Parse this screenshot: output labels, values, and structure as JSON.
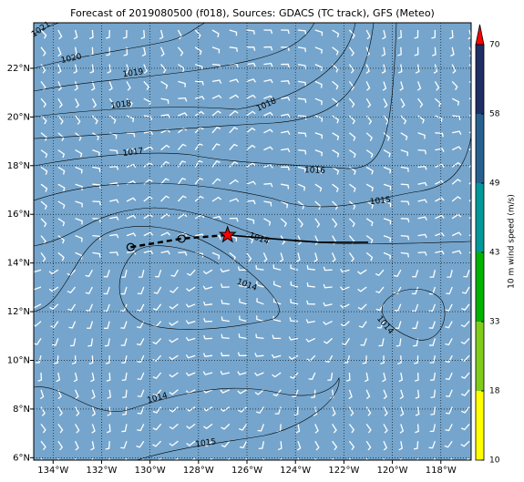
{
  "chart_data": {
    "type": "map",
    "title": "Forecast of 2019080500 (f018), Sources: GDACS (TC track), GFS (Meteo)",
    "xlim": [
      -134.8,
      -116.75
    ],
    "ylim": [
      5.9,
      23.87
    ],
    "xticks": [
      {
        "value": -134,
        "label": "134°W"
      },
      {
        "value": -132,
        "label": "132°W"
      },
      {
        "value": -130,
        "label": "130°W"
      },
      {
        "value": -128,
        "label": "128°W"
      },
      {
        "value": -126,
        "label": "126°W"
      },
      {
        "value": -124,
        "label": "124°W"
      },
      {
        "value": -122,
        "label": "122°W"
      },
      {
        "value": -120,
        "label": "120°W"
      },
      {
        "value": -118,
        "label": "118°W"
      }
    ],
    "yticks": [
      {
        "value": 6,
        "label": "6°N"
      },
      {
        "value": 8,
        "label": "8°N"
      },
      {
        "value": 10,
        "label": "10°N"
      },
      {
        "value": 12,
        "label": "12°N"
      },
      {
        "value": 14,
        "label": "14°N"
      },
      {
        "value": 16,
        "label": "16°N"
      },
      {
        "value": 18,
        "label": "18°N"
      },
      {
        "value": 20,
        "label": "20°N"
      },
      {
        "value": 22,
        "label": "22°N"
      }
    ],
    "grid": true,
    "background": "#75a5cc",
    "past_track": {
      "lon": [
        -130.8,
        -128.7,
        -126.8
      ],
      "lat": [
        14.65,
        15.0,
        15.15
      ]
    },
    "forecast_track": {
      "lon": [
        -126.8,
        -125,
        -123,
        -121
      ],
      "lat": [
        15.15,
        15.0,
        14.85,
        14.85
      ]
    },
    "contour_labels": [
      {
        "text": "1021",
        "lon": -134.5,
        "lat": 23.6
      },
      {
        "text": "1020",
        "lon": -133.25,
        "lat": 22.4
      },
      {
        "text": "1019",
        "lon": -130.7,
        "lat": 21.8
      },
      {
        "text": "1018",
        "lon": -131.2,
        "lat": 20.5
      },
      {
        "text": "1018",
        "lon": -125.2,
        "lat": 20.5
      },
      {
        "text": "1017",
        "lon": -130.7,
        "lat": 18.55
      },
      {
        "text": "1016",
        "lon": -123.2,
        "lat": 17.8
      },
      {
        "text": "1015",
        "lon": -120.5,
        "lat": 16.55
      },
      {
        "text": "1014",
        "lon": -125.5,
        "lat": 15.0
      },
      {
        "text": "1014",
        "lon": -126.0,
        "lat": 13.1
      },
      {
        "text": "1014",
        "lon": -120.3,
        "lat": 11.45
      },
      {
        "text": "1014",
        "lon": -129.7,
        "lat": 8.45
      },
      {
        "text": "1015",
        "lon": -127.7,
        "lat": 6.6
      }
    ],
    "colorbar": {
      "label": "10 m wind speed (m/s)",
      "ticks": [
        10,
        18,
        33,
        43,
        49,
        58,
        70
      ],
      "colors": [
        "#ffff00",
        "#80cc1a",
        "#00b300",
        "#009999",
        "#26608f",
        "#1f2f66"
      ],
      "extend_color": "#ff0000"
    }
  }
}
